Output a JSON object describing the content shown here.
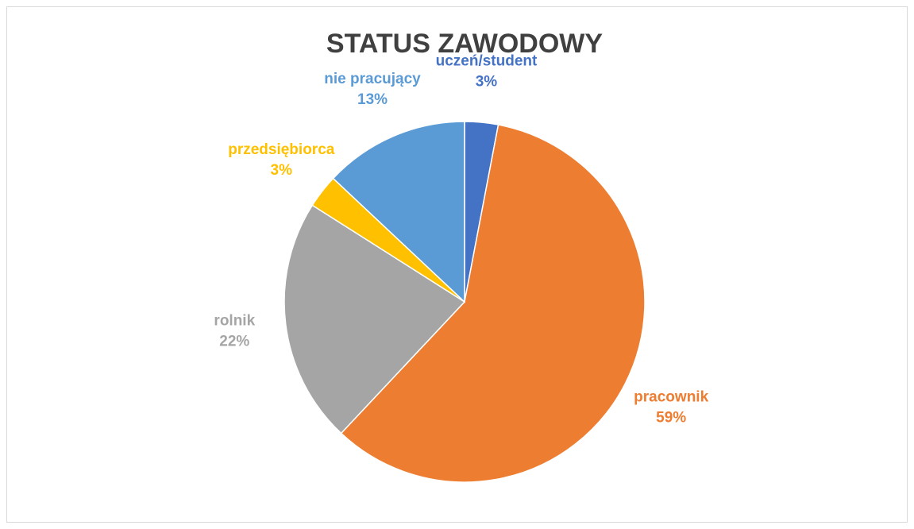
{
  "chart_data": {
    "type": "pie",
    "title": "STATUS ZAWODOWY",
    "categories": [
      "uczeń/student",
      "pracownik",
      "rolnik",
      "przedsiębiorca",
      "nie pracujący"
    ],
    "values": [
      3,
      59,
      22,
      3,
      13
    ],
    "value_labels": [
      "3%",
      "59%",
      "22%",
      "3%",
      "13%"
    ],
    "colors": [
      "#4472c4",
      "#ed7d31",
      "#a5a5a5",
      "#ffc000",
      "#5b9bd5"
    ]
  }
}
